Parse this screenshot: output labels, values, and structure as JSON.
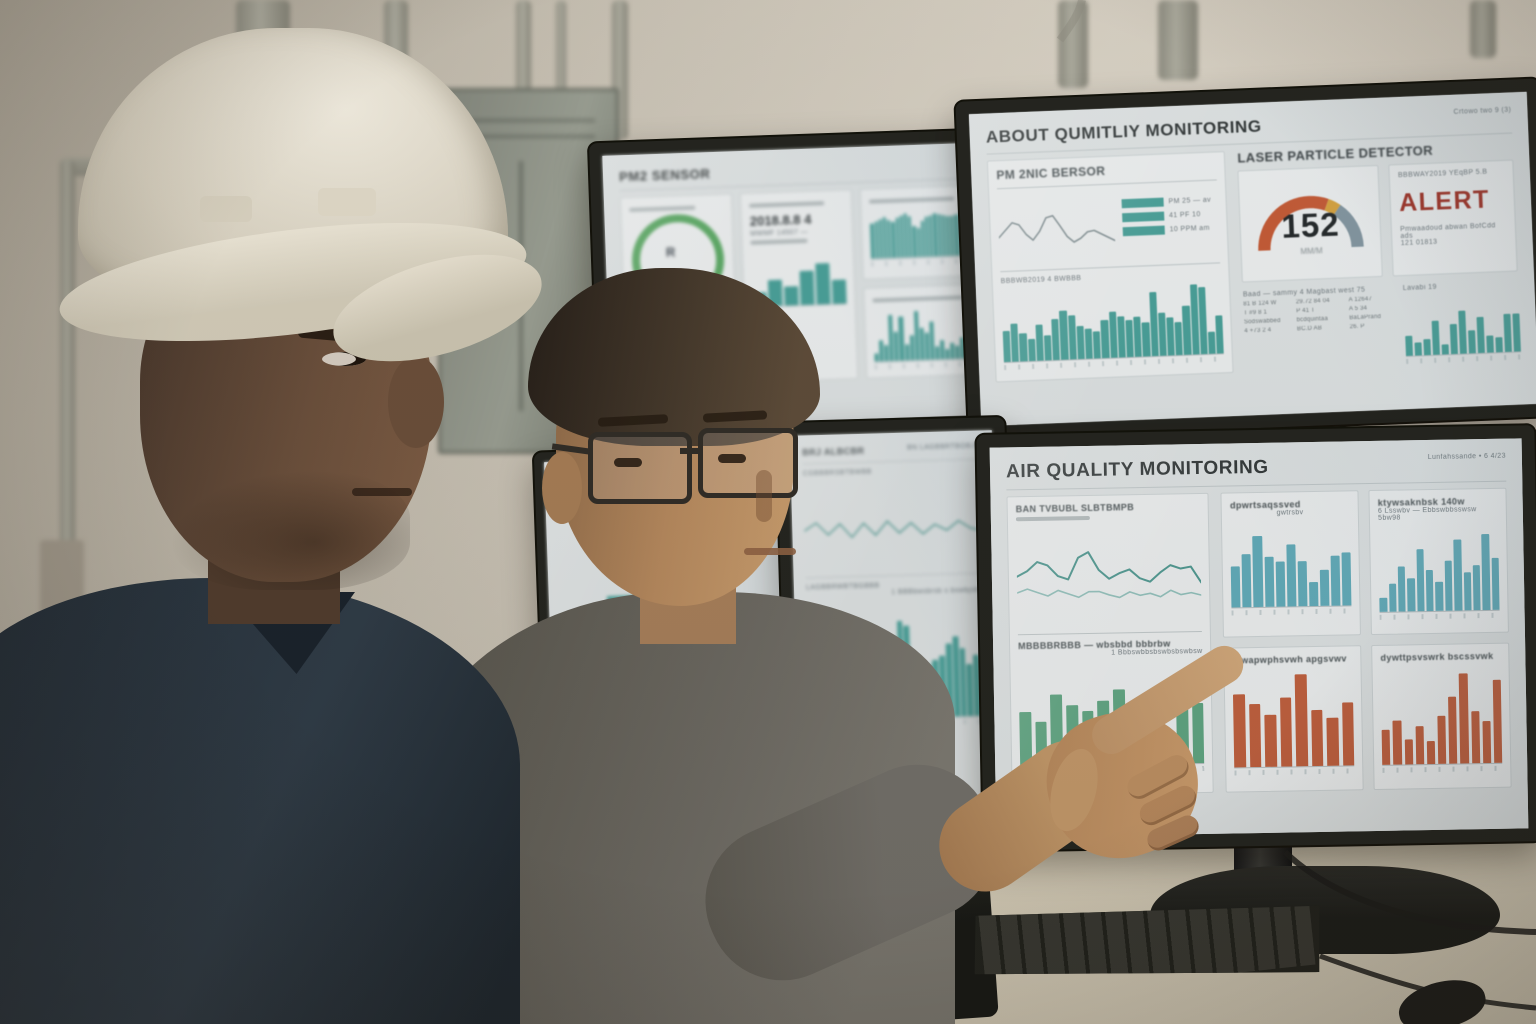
{
  "scene": {
    "setting": "industrial control room with four-monitor air quality workstation",
    "people": [
      "worker wearing white hard hat and navy shirt",
      "engineer with glasses in gray sweater pointing at dashboard"
    ]
  },
  "palette": {
    "teal": "#49a29b",
    "cyan": "#62aebd",
    "green": "#5fa783",
    "orange": "#c2603e",
    "alert_red": "#a33428",
    "gauge_orange": "#c75b36",
    "gauge_yellow": "#d9a53f",
    "gauge_slate": "#8498a3",
    "screen_bg": "#e0e5e6"
  },
  "monitors": {
    "top_left": {
      "header": "PM2 SENSOR",
      "stat_value": "2018.8.8 4",
      "stat_caption": "MWMF  14507 —",
      "bars_dense": [
        68,
        72,
        75,
        78,
        74,
        70,
        76,
        80,
        84,
        79,
        60,
        56,
        70,
        76,
        79,
        82,
        80,
        78,
        77,
        76,
        79,
        82,
        68,
        92
      ],
      "bars_varied": [
        14,
        38,
        28,
        82,
        52,
        78,
        28,
        44,
        88,
        58,
        48,
        68,
        24,
        34,
        18,
        28,
        24,
        38,
        62,
        66
      ],
      "bars_small": [
        30,
        55,
        40,
        70,
        85,
        50
      ]
    },
    "top_right": {
      "header": "ABOUT QUMITLIY MONITORING",
      "header_meta": "Crtowo two 9 (3)",
      "pm_card": {
        "title": "PM 2NIC BERSOR",
        "line": [
          40,
          52,
          64,
          60,
          44,
          34,
          48,
          70,
          73,
          56,
          38,
          28,
          34,
          44,
          46,
          40,
          34,
          28
        ],
        "legend": [
          {
            "label": "PM 25 — av"
          },
          {
            "label": "41 PF 10"
          },
          {
            "label": "10 PPM am"
          }
        ],
        "bars_title": "BBBWB2019 4 BWBBB",
        "bars": [
          42,
          52,
          38,
          30,
          48,
          34,
          56,
          66,
          60,
          44,
          40,
          36,
          52,
          62,
          56,
          50,
          54,
          46,
          86,
          58,
          52,
          44,
          66,
          95,
          90,
          30,
          52
        ]
      },
      "detector": {
        "title": "LASER PARTICLE DETECTOR",
        "value": "152",
        "unit": "MM/M",
        "gauge": [
          {
            "color": "#c75b36",
            "pct": 62
          },
          {
            "color": "#d9a53f",
            "pct": 8
          },
          {
            "color": "#8498a3",
            "pct": 30
          }
        ],
        "alert": {
          "meta": "BBBWAY2019 YEqBP 5.B",
          "label": "ALERT",
          "text": "Pmwaadoud abwan BofCdd ads",
          "text2": "121 01813"
        },
        "table_note": "Baad — sammy 4 Magbast west 75",
        "table": [
          [
            "81 B 124 W",
            "29.72 84 04",
            "A 12647"
          ],
          [
            "T #9 8 1",
            "P 41 T",
            "A 5 34"
          ],
          [
            "Sodswabbed",
            "bcdquintaa",
            "BaLaPrand"
          ],
          [
            "4 +73 2 4",
            "BC.D AB",
            "26. P"
          ]
        ],
        "mini_title": "Lavabi 19",
        "mini_bars": [
          34,
          22,
          28,
          58,
          18,
          52,
          74,
          40,
          62,
          30,
          26,
          66,
          66
        ]
      }
    },
    "bottom_left": {
      "header_label": "BRJ ALBCBR",
      "header_meta": "BN LAGBBRTBOBJB",
      "wave_title": "CGBBBRSBTBWBB",
      "line": [
        48,
        58,
        42,
        56,
        38,
        56,
        40,
        58,
        42,
        55,
        40,
        52,
        44,
        56,
        46,
        42
      ],
      "bars_title": "LAGBBRWBTBGBBB",
      "bars_meta": "1 BBBbwsbrsb s bswbjsbw",
      "bars": [
        38,
        52,
        44,
        58,
        48,
        46,
        66,
        72,
        52,
        48,
        44,
        40,
        56,
        82,
        78,
        38,
        28,
        44,
        48,
        52,
        62,
        68,
        58,
        44,
        52,
        48
      ]
    },
    "bottom_left_far": {
      "bars": [
        60,
        75,
        50,
        80,
        65
      ]
    },
    "bottom_right": {
      "header": "AIR QUALITY MONITORING",
      "header_meta": "Lunfahssande •  6  4/23",
      "trend_title": "BAN TVBUBL SLBTBMPB",
      "trend": {
        "line1": [
          52,
          58,
          68,
          64,
          52,
          48,
          72,
          78,
          58,
          48,
          54,
          58,
          48,
          44,
          54,
          62,
          58,
          60,
          42
        ],
        "line2": [
          34,
          38,
          34,
          30,
          36,
          32,
          28,
          34,
          34,
          30,
          27,
          33,
          29,
          31,
          27,
          34,
          29,
          31,
          28
        ]
      },
      "green_title": "MBBBBRBBB — wbsbbd bbbrbw",
      "green_meta": "1 Bbbswbbsbswbsbswbsw",
      "green_bars": [
        52,
        42,
        68,
        58,
        52,
        62,
        72,
        60,
        28,
        16,
        56,
        58
      ],
      "teal_a_title": "dpwrtsaqssved",
      "teal_a_meta": "gwtrsbv",
      "teal_a_bars": [
        48,
        62,
        82,
        58,
        52,
        72,
        52,
        28,
        42,
        58,
        62
      ],
      "teal_b_title": "ktywsaknbsk 140w",
      "teal_b_meta": "6 Lsswbv — Ebbswbbsswsw  5bw98",
      "teal_b_bars": [
        16,
        32,
        52,
        38,
        72,
        48,
        34,
        58,
        82,
        44,
        52,
        88,
        60
      ],
      "orange_a_title": "mwapwphsvwh apgsvwv",
      "orange_a_bars": [
        76,
        66,
        54,
        72,
        96,
        58,
        50,
        66
      ],
      "orange_b_title": "dywttpsvswrk  bscssvwk",
      "orange_b_bars": [
        36,
        46,
        26,
        40,
        24,
        50,
        70,
        94,
        54,
        44,
        86
      ]
    }
  }
}
